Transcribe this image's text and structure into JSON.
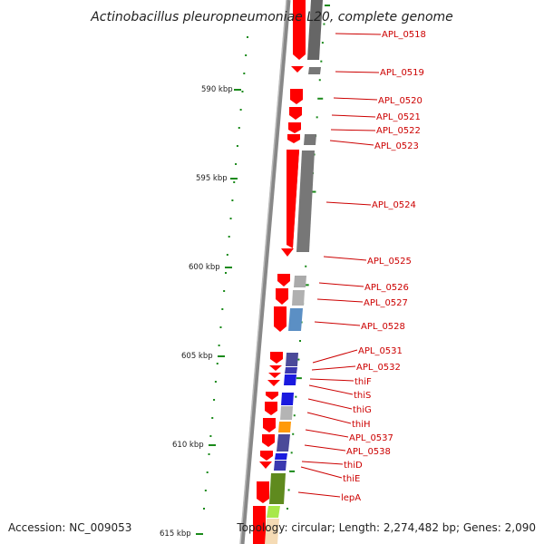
{
  "title": "Actinobacillus pleuropneumoniae L20, complete genome",
  "accession": "Accession: NC_009053",
  "topology": "Topology: circular; Length: 2,274,482 bp; Genes: 2,090",
  "colors": {
    "forward": "#ff0000",
    "label": "#cc0000",
    "tick": "#1a8a1a",
    "backbone": "#888888"
  },
  "ticks": [
    "590 kbp",
    "595 kbp",
    "600 kbp",
    "605 kbp",
    "610 kbp",
    "615 kbp"
  ],
  "genes": [
    {
      "label": "APL_0518"
    },
    {
      "label": "APL_0519"
    },
    {
      "label": "APL_0520"
    },
    {
      "label": "APL_0521"
    },
    {
      "label": "APL_0522"
    },
    {
      "label": "APL_0523"
    },
    {
      "label": "APL_0524"
    },
    {
      "label": "APL_0525"
    },
    {
      "label": "APL_0526"
    },
    {
      "label": "APL_0527"
    },
    {
      "label": "APL_0528"
    },
    {
      "label": "APL_0531"
    },
    {
      "label": "APL_0532"
    },
    {
      "label": "thiF"
    },
    {
      "label": "thiS"
    },
    {
      "label": "thiG"
    },
    {
      "label": "thiH"
    },
    {
      "label": "APL_0537"
    },
    {
      "label": "APL_0538"
    },
    {
      "label": "thiD"
    },
    {
      "label": "thiE"
    },
    {
      "label": "lepA"
    }
  ]
}
